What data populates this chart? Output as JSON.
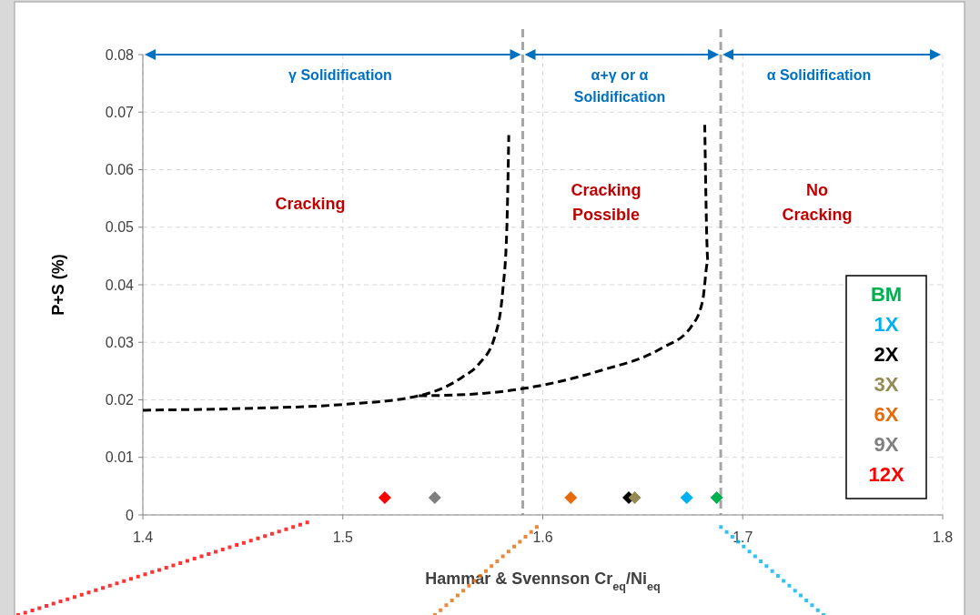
{
  "chart_data": {
    "type": "scatter",
    "xlabel": "Hammar & Svennson Cr$_{eq}$/Ni$_{eq}$",
    "ylabel": "P+S (%)",
    "xlim": [
      1.4,
      1.8
    ],
    "xticks": [
      1.4,
      1.5,
      1.6,
      1.7,
      1.8
    ],
    "ylim": [
      0,
      0.08
    ],
    "yticks": [
      0,
      0.01,
      0.02,
      0.03,
      0.04,
      0.05,
      0.06,
      0.07,
      0.08
    ],
    "grid": true,
    "legend": "right",
    "marker": "diamond",
    "series": [
      {
        "name": "BM",
        "color": "#00b050",
        "x": [
          1.687
        ],
        "values": [
          0.003
        ]
      },
      {
        "name": "1X",
        "color": "#00b0f0",
        "x": [
          1.672
        ],
        "values": [
          0.003
        ]
      },
      {
        "name": "2X",
        "color": "#000000",
        "x": [
          1.643
        ],
        "values": [
          0.003
        ]
      },
      {
        "name": "3X",
        "color": "#948a54",
        "x": [
          1.646
        ],
        "values": [
          0.003
        ]
      },
      {
        "name": "6X",
        "color": "#e46c0a",
        "x": [
          1.614
        ],
        "values": [
          0.003
        ]
      },
      {
        "name": "9X",
        "color": "#808080",
        "x": [
          1.546
        ],
        "values": [
          0.003
        ]
      },
      {
        "name": "12X",
        "color": "#ff0000",
        "x": [
          1.521
        ],
        "values": [
          0.003
        ]
      },
      {
        "type": "line",
        "color": "#000000",
        "line_style": "dashed",
        "marker": "none",
        "x": [
          1.4,
          1.45,
          1.5,
          1.538,
          1.56,
          1.568,
          1.576,
          1.58,
          1.582,
          1.583
        ],
        "values": [
          0.0182,
          0.0185,
          0.0192,
          0.0207,
          0.024,
          0.0262,
          0.031,
          0.039,
          0.0495,
          0.066
        ]
      },
      {
        "type": "line",
        "color": "#000000",
        "line_style": "dashed",
        "marker": "none",
        "x": [
          1.538,
          1.565,
          1.591,
          1.629,
          1.659,
          1.674,
          1.68,
          1.6826,
          1.681
        ],
        "values": [
          0.0207,
          0.021,
          0.022,
          0.0251,
          0.0289,
          0.0326,
          0.0373,
          0.0441,
          0.0678
        ]
      }
    ],
    "ref_lines": [
      {
        "axis": "x",
        "value": 1.59,
        "color": "#a6a6a6",
        "line_style": "dashed"
      },
      {
        "axis": "x",
        "value": 1.689,
        "color": "#a6a6a6",
        "line_style": "dashed"
      }
    ],
    "annotations": [
      "γ Solidification",
      "α+γ or α\nSolidification",
      "α Solidification",
      "Cracking",
      "Cracking\nPossible",
      "No\nCracking"
    ]
  }
}
